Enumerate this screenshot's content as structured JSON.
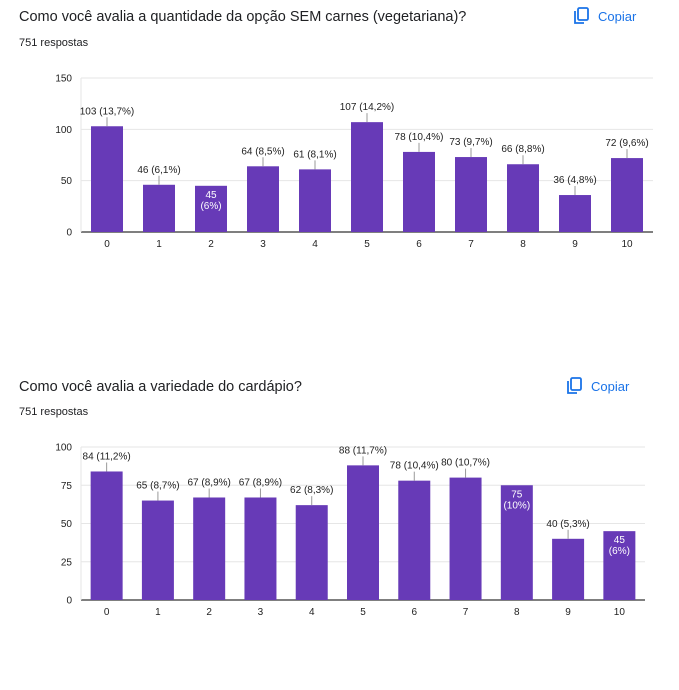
{
  "colors": {
    "bar": "#673ab7",
    "accent": "#1a73e8",
    "grid": "#e6e6e6",
    "axis": "#333333"
  },
  "charts": [
    {
      "title": "Como você avalia a quantidade da opção SEM carnes (vegetariana)?",
      "responses": "751 respostas",
      "copy_label": "Copiar",
      "copy_icon": "copy-icon"
    },
    {
      "title": "Como você avalia a variedade do cardápio?",
      "responses": "751 respostas",
      "copy_label": "Copiar",
      "copy_icon": "copy-icon"
    }
  ],
  "chart_data": [
    {
      "type": "bar",
      "categories": [
        "0",
        "1",
        "2",
        "3",
        "4",
        "5",
        "6",
        "7",
        "8",
        "9",
        "10"
      ],
      "values": [
        103,
        46,
        45,
        64,
        61,
        107,
        78,
        73,
        66,
        36,
        72
      ],
      "labels": [
        "103 (13,7%)",
        "46 (6,1%)",
        "45 (6%)",
        "64 (8,5%)",
        "61 (8,1%)",
        "107 (14,2%)",
        "78 (10,4%)",
        "73 (9,7%)",
        "66 (8,8%)",
        "36 (4,8%)",
        "72 (9,6%)"
      ],
      "label_inside": [
        false,
        false,
        true,
        false,
        false,
        false,
        false,
        false,
        false,
        false,
        false
      ],
      "ylim": [
        0,
        150
      ],
      "yticks": [
        0,
        50,
        100,
        150
      ],
      "grid": true
    },
    {
      "type": "bar",
      "categories": [
        "0",
        "1",
        "2",
        "3",
        "4",
        "5",
        "6",
        "7",
        "8",
        "9",
        "10"
      ],
      "values": [
        84,
        65,
        67,
        67,
        62,
        88,
        78,
        80,
        75,
        40,
        45
      ],
      "labels": [
        "84 (11,2%)",
        "65 (8,7%)",
        "67 (8,9%)",
        "67 (8,9%)",
        "62 (8,3%)",
        "88 (11,7%)",
        "78 (10,4%)",
        "80 (10,7%)",
        "75 (10%)",
        "40 (5,3%)",
        "45 (6%)"
      ],
      "label_inside": [
        false,
        false,
        false,
        false,
        false,
        false,
        false,
        false,
        true,
        false,
        true
      ],
      "ylim": [
        0,
        100
      ],
      "yticks": [
        0,
        25,
        50,
        75,
        100
      ],
      "grid": true
    }
  ]
}
